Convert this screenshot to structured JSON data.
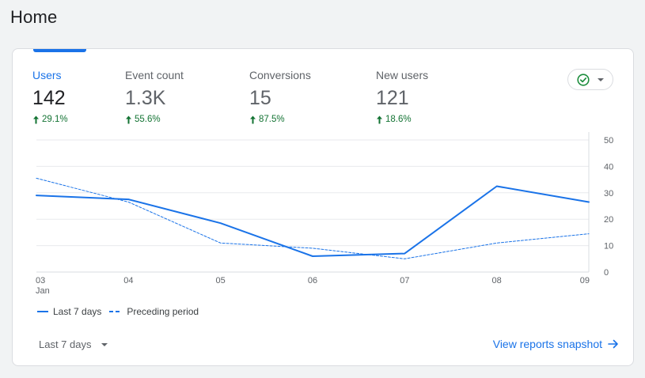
{
  "page": {
    "title": "Home"
  },
  "metrics": [
    {
      "label": "Users",
      "value": "142",
      "change": "29.1%",
      "active": true
    },
    {
      "label": "Event count",
      "value": "1.3K",
      "change": "55.6%",
      "active": false
    },
    {
      "label": "Conversions",
      "value": "15",
      "change": "87.5%",
      "active": false
    },
    {
      "label": "New users",
      "value": "121",
      "change": "18.6%",
      "active": false
    }
  ],
  "status_icon": "check-circle-icon",
  "colors": {
    "accent": "#1a73e8",
    "positive": "#137333",
    "grid": "#e8eaed",
    "text_muted": "#5f6368"
  },
  "chart_data": {
    "type": "line",
    "categories": [
      "03",
      "04",
      "05",
      "06",
      "07",
      "08",
      "09"
    ],
    "category_sublabels": [
      "Jan",
      "",
      "",
      "",
      "",
      "",
      ""
    ],
    "series": [
      {
        "name": "Last 7 days",
        "style": "solid",
        "values": [
          29,
          27.5,
          18.5,
          6,
          7,
          32.5,
          26.5
        ]
      },
      {
        "name": "Preceding period",
        "style": "dashed",
        "values": [
          35.5,
          26.5,
          11,
          9,
          5,
          11,
          14.5
        ]
      }
    ],
    "y_ticks": [
      0,
      10,
      20,
      30,
      40,
      50
    ],
    "ylim": [
      0,
      50
    ],
    "y_axis_position": "right",
    "grid": true,
    "legend_position": "bottom-left"
  },
  "legend": {
    "current_label": "Last 7 days",
    "previous_label": "Preceding period"
  },
  "footer": {
    "date_range": "Last 7 days",
    "link_label": "View reports snapshot"
  }
}
